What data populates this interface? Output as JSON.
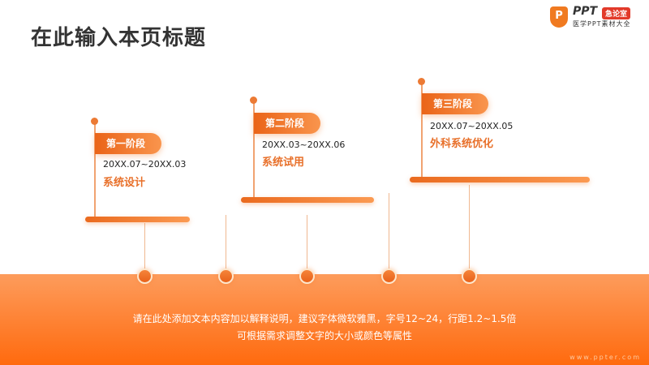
{
  "title": "在此输入本页标题",
  "logo": {
    "mark": "P",
    "brand": "PPT",
    "badge": "急论室",
    "tagline": "医学PPT素材大全"
  },
  "stages": [
    {
      "label": "第一阶段",
      "date": "20XX.07~20XX.03",
      "name": "系统设计"
    },
    {
      "label": "第二阶段",
      "date": "20XX.03~20XX.06",
      "name": "系统试用"
    },
    {
      "label": "第三阶段",
      "date": "20XX.07~20XX.05",
      "name": "外科系统优化"
    }
  ],
  "description": [
    "请在此处添加文本内容加以解释说明，建议字体微软雅黑，字号12~24，行距1.2~1.5倍",
    "可根据需求调整文字的大小或颜色等属性"
  ],
  "watermark": "www.ppter.com",
  "colors": {
    "accent": "#ee7228",
    "band_top": "#fd9c5c",
    "band_bottom": "#ff6a0e"
  }
}
